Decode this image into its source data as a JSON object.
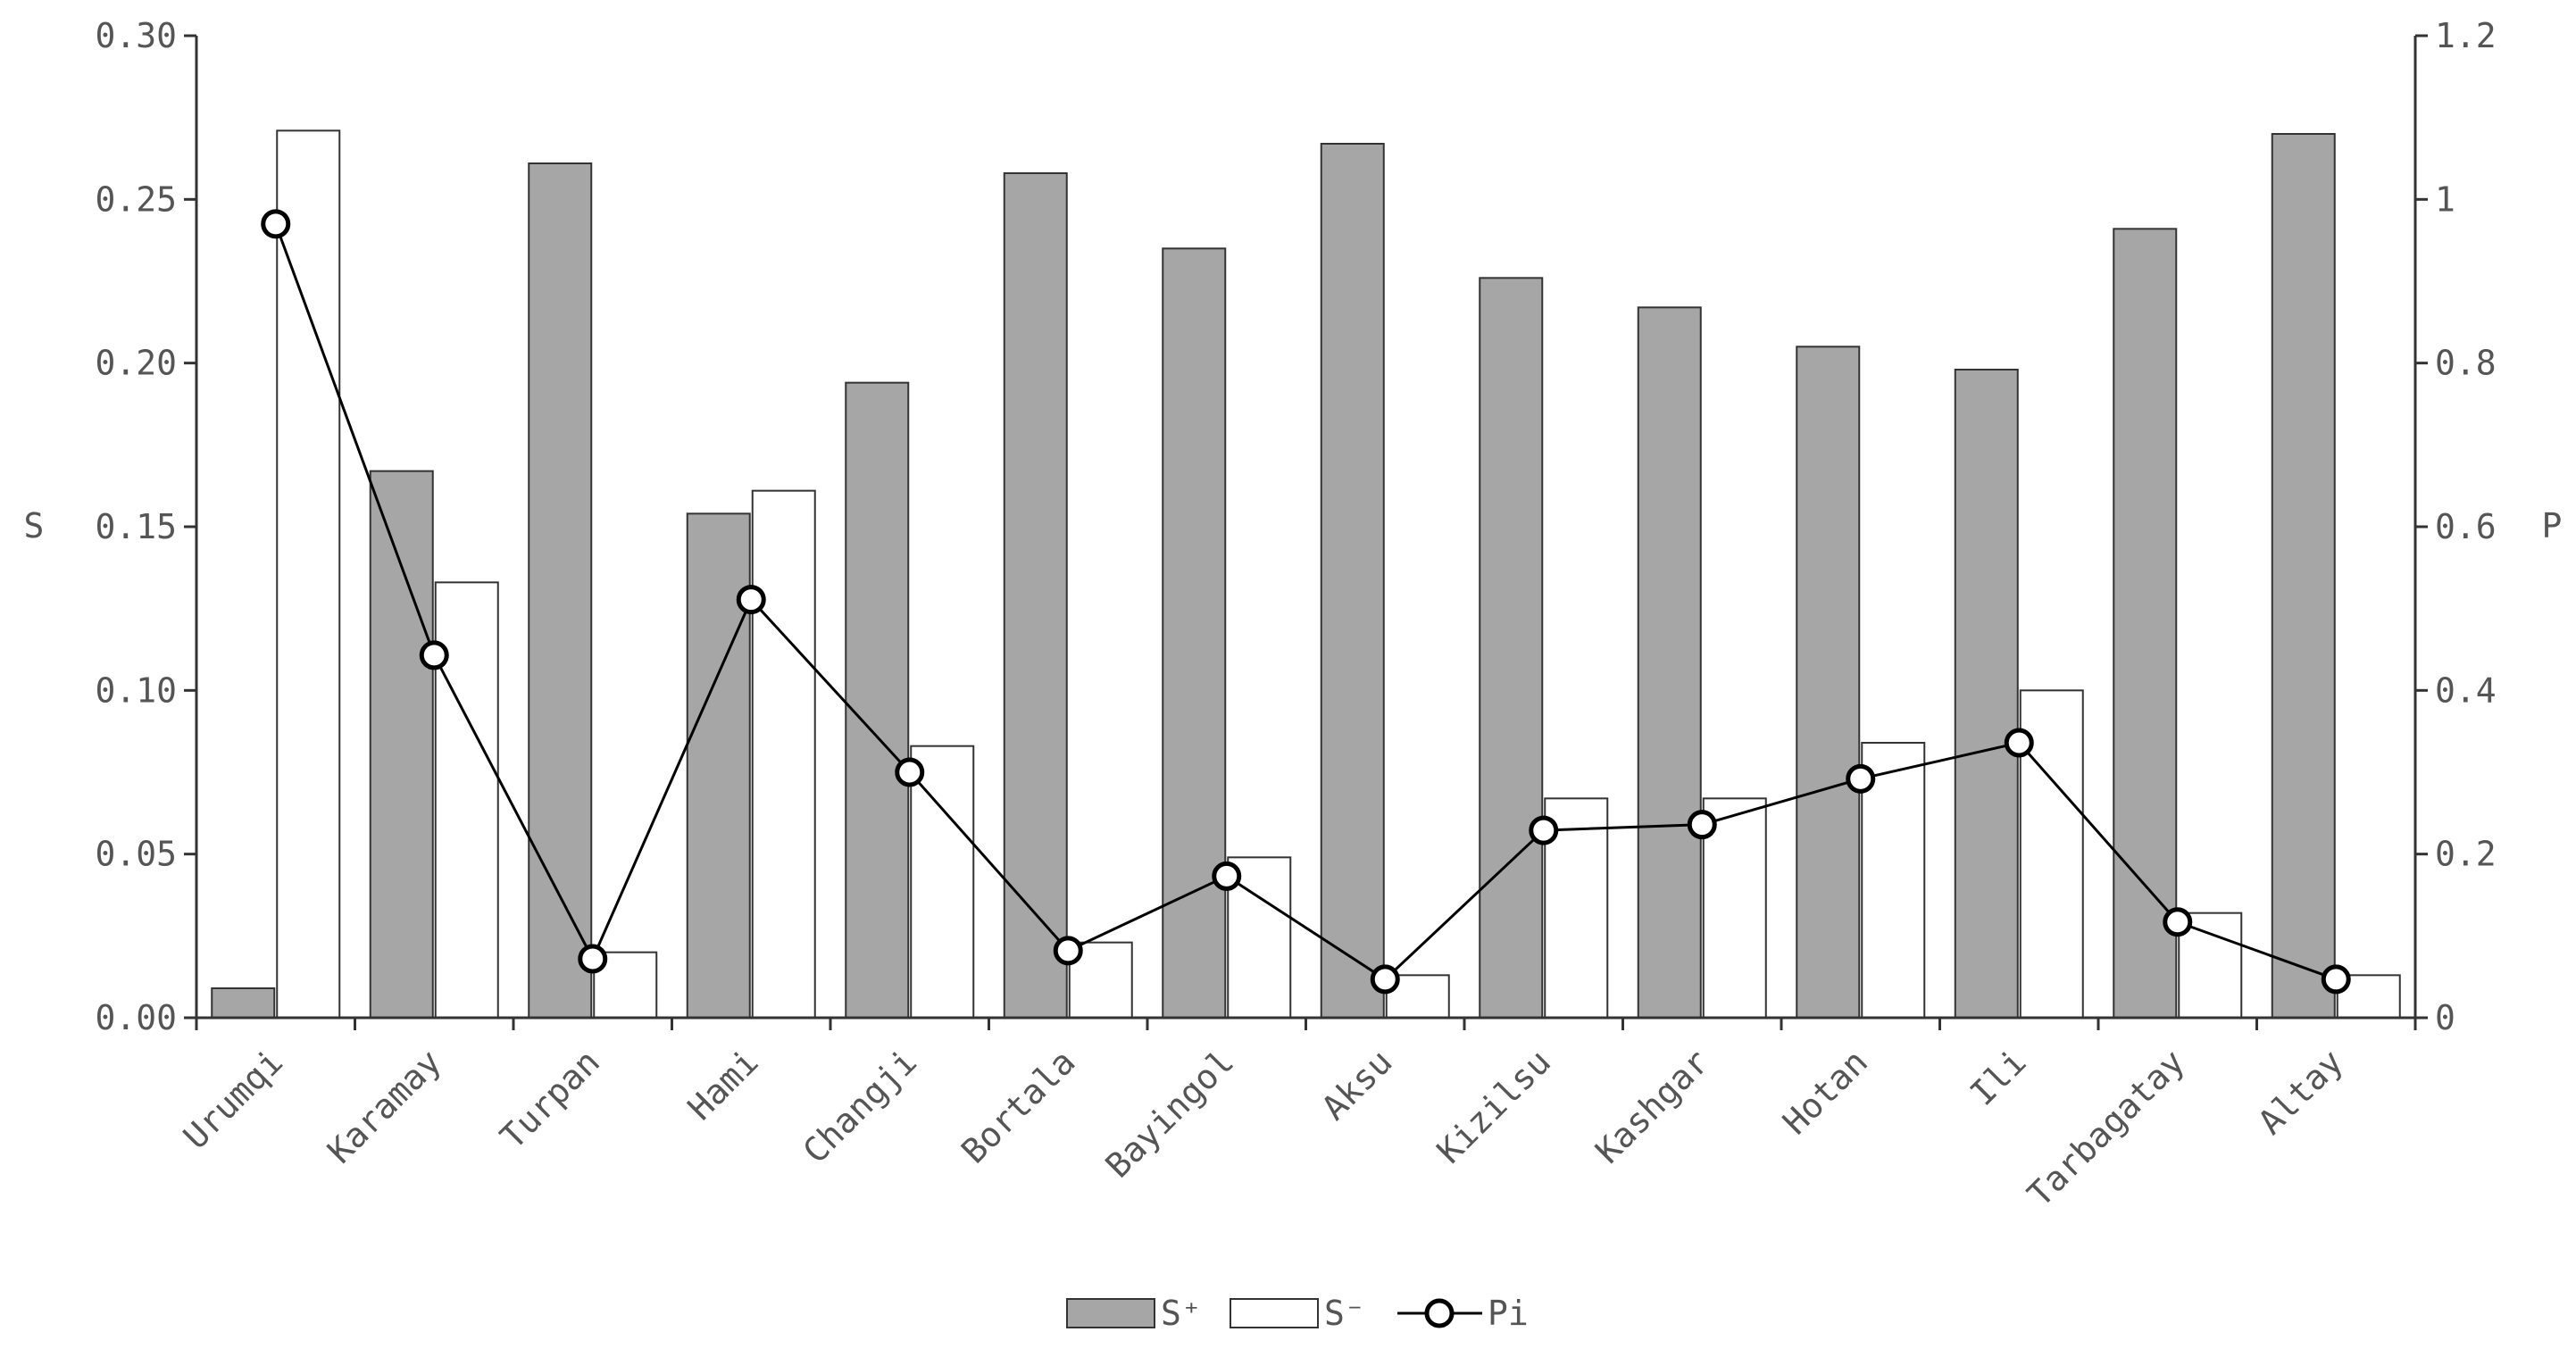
{
  "chart_data": {
    "type": "bar",
    "categories": [
      "Urumqi",
      "Karamay",
      "Turpan",
      "Hami",
      "Changji",
      "Bortala",
      "Bayingol",
      "Aksu",
      "Kizilsu",
      "Kashgar",
      "Hotan",
      "Ili",
      "Tarbagatay",
      "Altay"
    ],
    "series": [
      {
        "name": "S⁺",
        "type": "bar",
        "axis": "left",
        "color": "#a6a6a6",
        "values": [
          0.009,
          0.167,
          0.261,
          0.154,
          0.194,
          0.258,
          0.235,
          0.267,
          0.226,
          0.217,
          0.205,
          0.198,
          0.241,
          0.27
        ]
      },
      {
        "name": "S⁻",
        "type": "bar",
        "axis": "left",
        "color": "#ffffff",
        "values": [
          0.271,
          0.133,
          0.02,
          0.161,
          0.083,
          0.023,
          0.049,
          0.013,
          0.067,
          0.067,
          0.084,
          0.1,
          0.032,
          0.013
        ]
      },
      {
        "name": "Pi",
        "type": "line",
        "axis": "right",
        "marker": "circle",
        "color": "#000000",
        "values": [
          0.97,
          0.443,
          0.072,
          0.511,
          0.3,
          0.082,
          0.173,
          0.047,
          0.229,
          0.236,
          0.292,
          0.336,
          0.117,
          0.047
        ]
      }
    ],
    "ylabel": "S",
    "y2label": "P",
    "ylim": [
      0,
      0.3
    ],
    "yticks": [
      "0.00",
      "0.05",
      "0.10",
      "0.15",
      "0.20",
      "0.25",
      "0.30"
    ],
    "y2lim": [
      0,
      1.2
    ],
    "y2ticks": [
      "0",
      "0.2",
      "0.4",
      "0.6",
      "0.8",
      "1",
      "1.2"
    ],
    "grid": false,
    "legend_position": "bottom-center"
  }
}
